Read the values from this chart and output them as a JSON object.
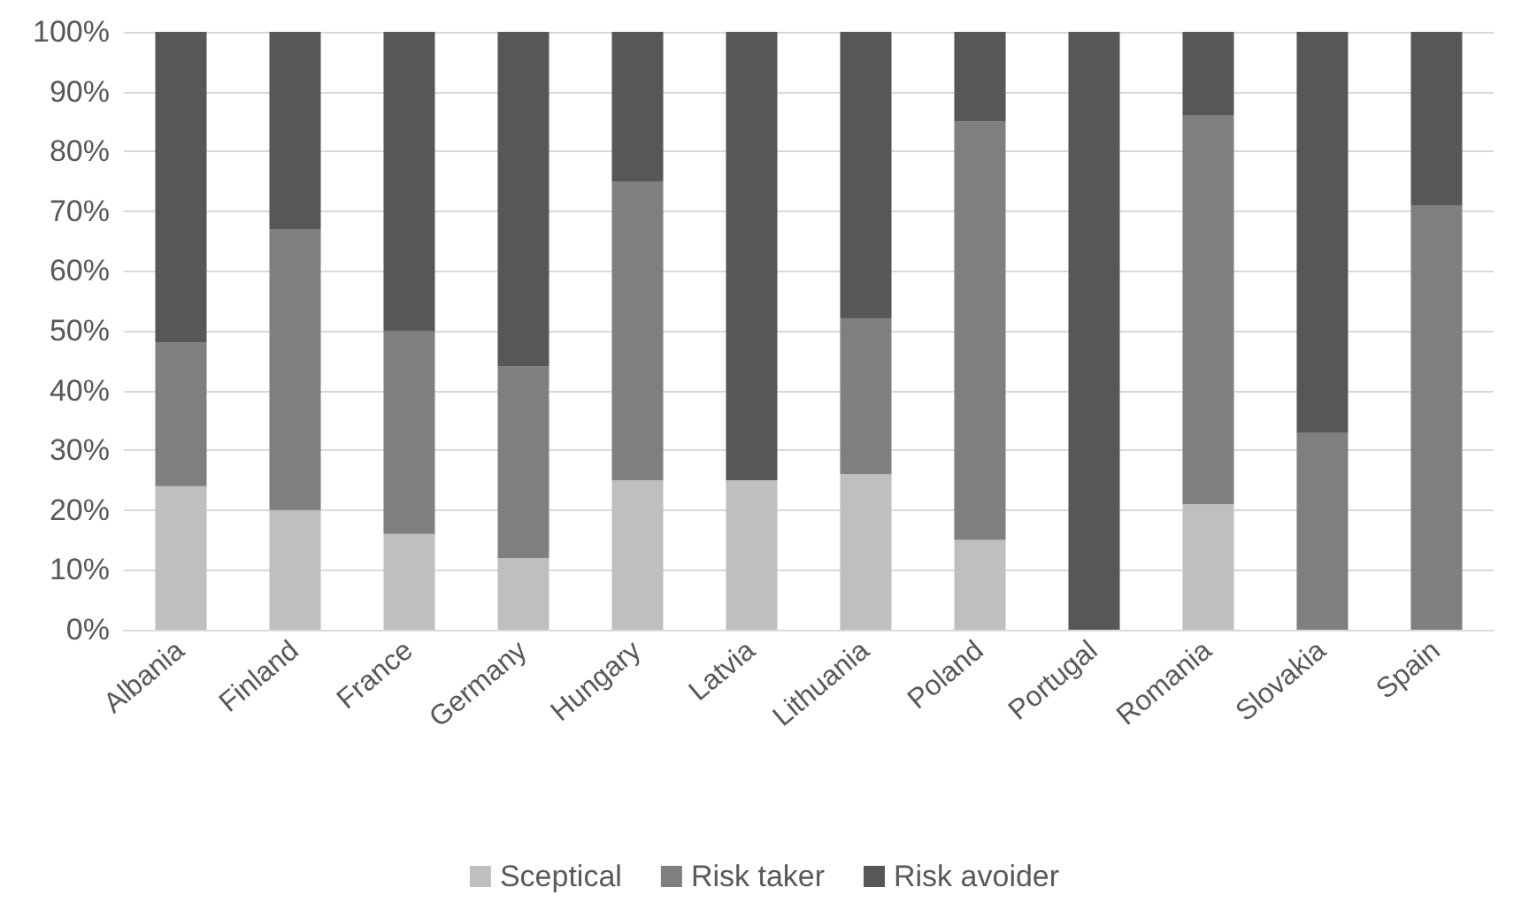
{
  "chart_data": {
    "type": "bar",
    "stacked": true,
    "categories": [
      "Albania",
      "Finland",
      "France",
      "Germany",
      "Hungary",
      "Latvia",
      "Lithuania",
      "Poland",
      "Portugal",
      "Romania",
      "Slovakia",
      "Spain"
    ],
    "series": [
      {
        "name": "Sceptical",
        "color": "#bfbfbf",
        "values": [
          24,
          20,
          16,
          12,
          25,
          25,
          26,
          15,
          0,
          21,
          0,
          0
        ]
      },
      {
        "name": "Risk taker",
        "color": "#7f7f7f",
        "values": [
          24,
          47,
          34,
          32,
          50,
          0,
          26,
          70,
          0,
          65,
          33,
          71
        ]
      },
      {
        "name": "Risk avoider",
        "color": "#575757",
        "values": [
          52,
          33,
          50,
          56,
          25,
          75,
          48,
          15,
          100,
          14,
          67,
          29
        ]
      }
    ],
    "ylim": [
      0,
      100
    ],
    "yticks": [
      {
        "value": 0,
        "label": "0%"
      },
      {
        "value": 10,
        "label": "10%"
      },
      {
        "value": 20,
        "label": "20%"
      },
      {
        "value": 30,
        "label": "30%"
      },
      {
        "value": 40,
        "label": "40%"
      },
      {
        "value": 50,
        "label": "50%"
      },
      {
        "value": 60,
        "label": "60%"
      },
      {
        "value": 70,
        "label": "70%"
      },
      {
        "value": 80,
        "label": "80%"
      },
      {
        "value": 90,
        "label": "90%"
      },
      {
        "value": 100,
        "label": "100%"
      }
    ],
    "grid": "y",
    "legend": "bottom"
  }
}
